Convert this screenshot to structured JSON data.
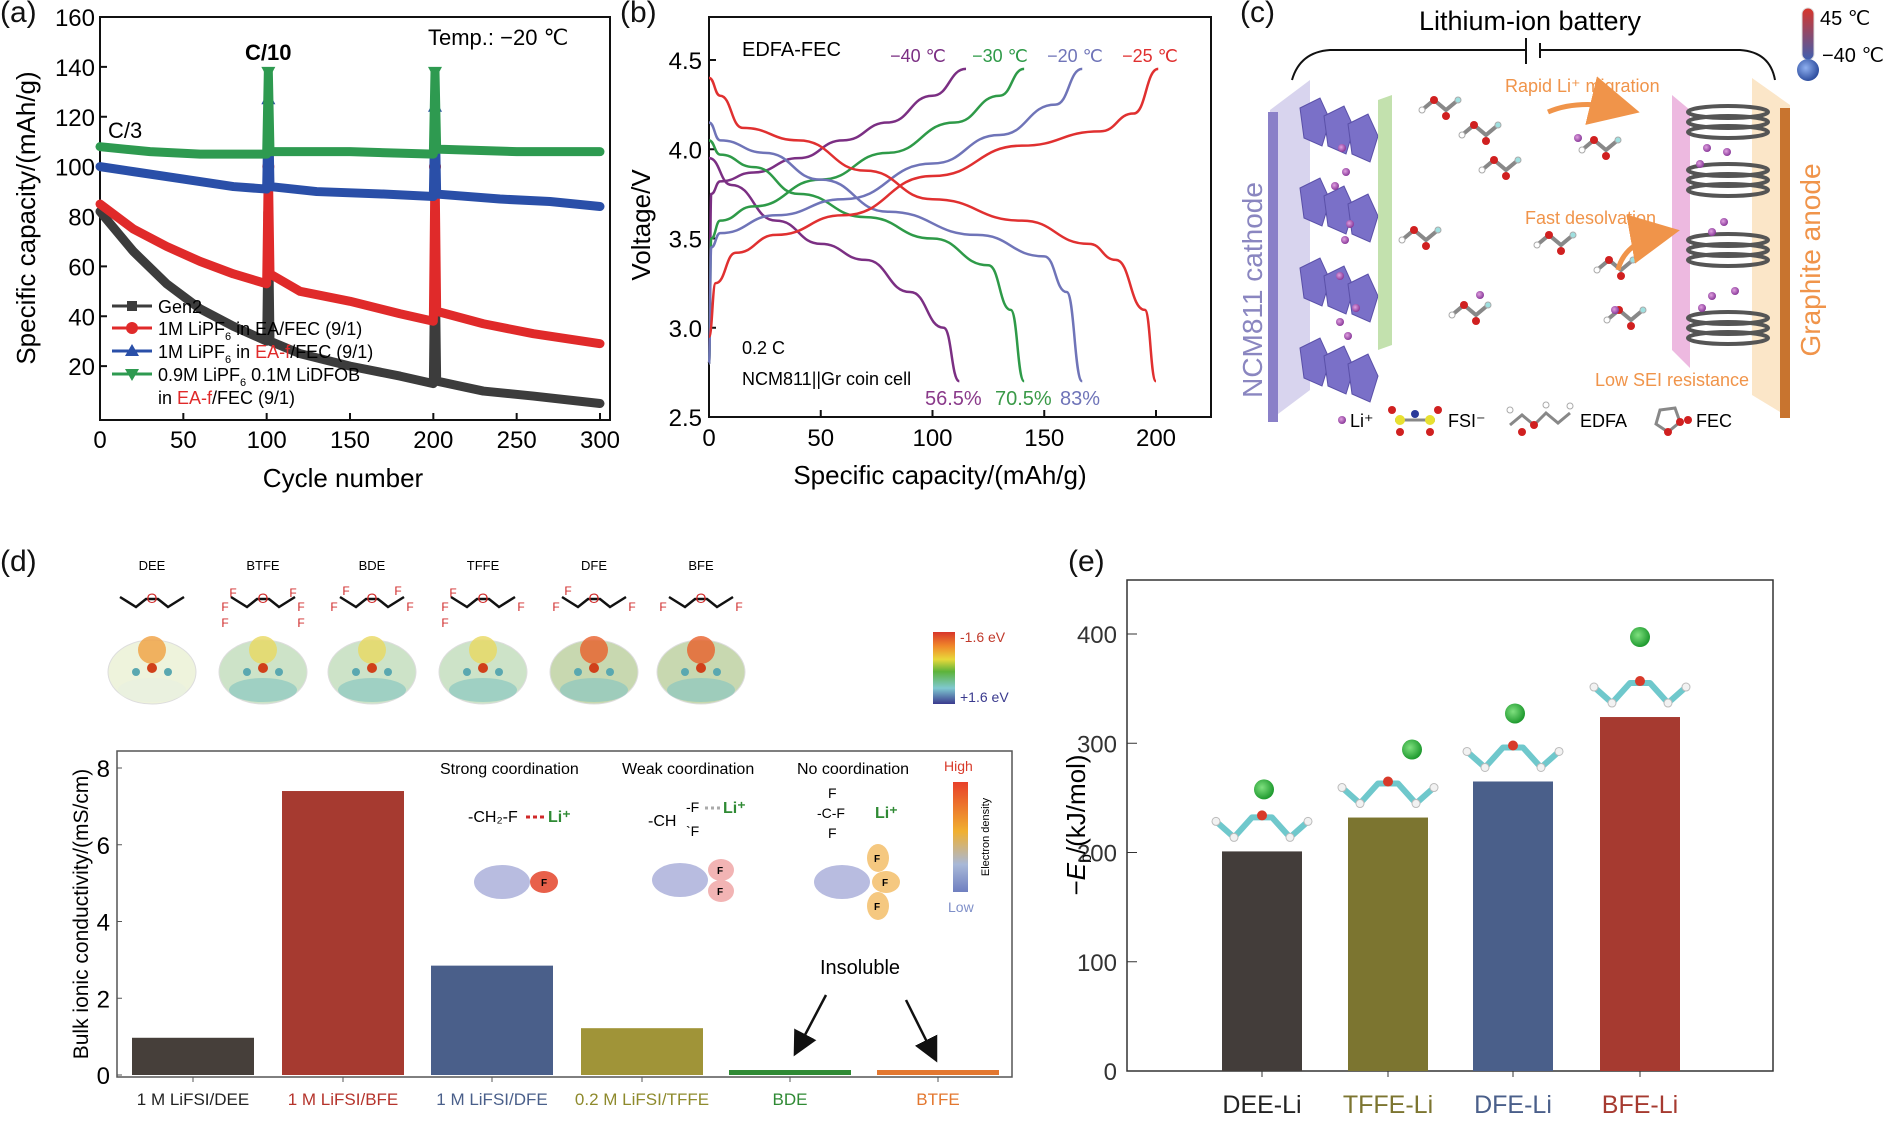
{
  "panels": {
    "a": "(a)",
    "b": "(b)",
    "c": "(c)",
    "d": "(d)",
    "e": "(e)"
  },
  "chart_data": [
    {
      "id": "a",
      "type": "line",
      "title": "",
      "xlabel": "Cycle number",
      "ylabel": "Specific capacity/(mAh/g)",
      "xlim": [
        0,
        300
      ],
      "ylim": [
        0,
        160
      ],
      "xticks": [
        0,
        50,
        100,
        150,
        200,
        250,
        300
      ],
      "yticks": [
        20,
        40,
        60,
        80,
        100,
        120,
        140,
        160
      ],
      "annotations": [
        "Temp.: −20 ℃",
        "C/10",
        "C/3"
      ],
      "legend_position": "bottom-left",
      "series": [
        {
          "name": "Gen2",
          "color": "#3c3c3c",
          "marker": "square",
          "x": [
            0,
            20,
            40,
            60,
            80,
            100,
            101,
            102,
            120,
            150,
            180,
            200,
            201,
            202,
            230,
            260,
            300
          ],
          "y": [
            82,
            66,
            53,
            43,
            36,
            30,
            80,
            30,
            25,
            20,
            16,
            13,
            66,
            14,
            10,
            8,
            5
          ]
        },
        {
          "name": "1M LiPF6 in EA/FEC (9/1)",
          "color": "#e02a2a",
          "marker": "circle",
          "x": [
            0,
            20,
            40,
            60,
            80,
            100,
            101,
            102,
            120,
            150,
            180,
            200,
            201,
            202,
            230,
            260,
            300
          ],
          "y": [
            85,
            75,
            68,
            62,
            57,
            53,
            100,
            57,
            50,
            46,
            41,
            38,
            100,
            42,
            37,
            33,
            29
          ]
        },
        {
          "name": "1M LiPF6 in EA-f/FEC (9/1)",
          "color": "#2a4fa8",
          "marker": "triangle-up",
          "x": [
            0,
            20,
            50,
            80,
            100,
            101,
            102,
            130,
            170,
            200,
            201,
            202,
            240,
            270,
            300
          ],
          "y": [
            100,
            98,
            95,
            92,
            91,
            127,
            92,
            90,
            89,
            88,
            124,
            89,
            87,
            86,
            84
          ]
        },
        {
          "name": "0.9M LiPF6 0.1M LiDFOB in EA-f/FEC (9/1)",
          "color": "#2e9a50",
          "marker": "triangle-down",
          "x": [
            0,
            30,
            60,
            100,
            101,
            102,
            150,
            200,
            201,
            202,
            250,
            300
          ],
          "y": [
            108,
            106,
            105,
            105,
            138,
            106,
            106,
            105,
            138,
            107,
            106,
            106
          ]
        }
      ]
    },
    {
      "id": "b",
      "type": "line",
      "xlabel": "Specific capacity/(mAh/g)",
      "ylabel": "Voltage/V",
      "xlim": [
        0,
        225
      ],
      "ylim": [
        2.5,
        4.75
      ],
      "xticks": [
        0,
        50,
        100,
        150,
        200
      ],
      "yticks": [
        2.5,
        3.0,
        3.5,
        4.0,
        4.5
      ],
      "annotations": [
        "EDFA-FEC",
        "0.2 C",
        "NCM811||Gr coin cell"
      ],
      "retention_labels": [
        {
          "text": "56.5%",
          "color": "#8a3a8a"
        },
        {
          "text": "70.5%",
          "color": "#3a9a48"
        },
        {
          "text": "83%",
          "color": "#6f74b8"
        }
      ],
      "series": [
        {
          "name": "−40 ℃",
          "color": "#7b2f83",
          "charge": [
            [
              0,
              2.8
            ],
            [
              1,
              3.75
            ],
            [
              5,
              3.82
            ],
            [
              20,
              3.87
            ],
            [
              40,
              3.95
            ],
            [
              60,
              4.05
            ],
            [
              80,
              4.15
            ],
            [
              100,
              4.3
            ],
            [
              115,
              4.45
            ]
          ],
          "discharge": [
            [
              0,
              3.95
            ],
            [
              10,
              3.8
            ],
            [
              30,
              3.6
            ],
            [
              50,
              3.47
            ],
            [
              70,
              3.38
            ],
            [
              90,
              3.2
            ],
            [
              105,
              3.0
            ],
            [
              112,
              2.7
            ]
          ]
        },
        {
          "name": "−30 ℃",
          "color": "#2e9a48",
          "charge": [
            [
              0,
              2.8
            ],
            [
              1,
              3.5
            ],
            [
              5,
              3.6
            ],
            [
              20,
              3.68
            ],
            [
              50,
              3.83
            ],
            [
              80,
              3.98
            ],
            [
              110,
              4.15
            ],
            [
              130,
              4.3
            ],
            [
              141,
              4.45
            ]
          ],
          "discharge": [
            [
              0,
              4.05
            ],
            [
              5,
              3.97
            ],
            [
              20,
              3.9
            ],
            [
              40,
              3.75
            ],
            [
              70,
              3.62
            ],
            [
              100,
              3.5
            ],
            [
              125,
              3.35
            ],
            [
              135,
              3.1
            ],
            [
              141,
              2.7
            ]
          ]
        },
        {
          "name": "−20 ℃",
          "color": "#6f74b8",
          "charge": [
            [
              0,
              2.8
            ],
            [
              1,
              3.45
            ],
            [
              5,
              3.53
            ],
            [
              30,
              3.63
            ],
            [
              60,
              3.72
            ],
            [
              100,
              3.92
            ],
            [
              130,
              4.08
            ],
            [
              155,
              4.25
            ],
            [
              167,
              4.45
            ]
          ],
          "discharge": [
            [
              0,
              4.15
            ],
            [
              5,
              4.05
            ],
            [
              25,
              3.98
            ],
            [
              50,
              3.83
            ],
            [
              80,
              3.65
            ],
            [
              120,
              3.52
            ],
            [
              150,
              3.4
            ],
            [
              160,
              3.2
            ],
            [
              167,
              2.7
            ]
          ]
        },
        {
          "name": "−25 ℃",
          "color": "#e03030",
          "charge": [
            [
              0,
              2.95
            ],
            [
              3,
              3.25
            ],
            [
              12,
              3.42
            ],
            [
              30,
              3.52
            ],
            [
              60,
              3.63
            ],
            [
              100,
              3.85
            ],
            [
              140,
              4.02
            ],
            [
              175,
              4.1
            ],
            [
              190,
              4.2
            ],
            [
              201,
              4.45
            ]
          ],
          "discharge": [
            [
              0,
              4.4
            ],
            [
              5,
              4.3
            ],
            [
              15,
              4.12
            ],
            [
              40,
              4.05
            ],
            [
              70,
              3.88
            ],
            [
              100,
              3.72
            ],
            [
              140,
              3.6
            ],
            [
              170,
              3.47
            ],
            [
              182,
              3.38
            ],
            [
              195,
              3.1
            ],
            [
              200,
              2.7
            ]
          ]
        }
      ]
    },
    {
      "id": "d",
      "type": "bar",
      "ylabel": "Bulk ionic conductivity/(mS/cm)",
      "ylim": [
        0,
        8.5
      ],
      "yticks": [
        0,
        2,
        4,
        6,
        8
      ],
      "categories": [
        "1 M LiFSI/DEE",
        "1 M LiFSI/BFE",
        "1 M LiFSI/DFE",
        "0.2 M LiFSI/TFFE",
        "BDE",
        "BTFE"
      ],
      "values": [
        0.97,
        7.4,
        2.85,
        1.22,
        0.13,
        0.13
      ],
      "colors": [
        "#463f3a",
        "#a63a30",
        "#4a5f8a",
        "#a09438",
        "#2f8a34",
        "#e3772f"
      ],
      "label_colors": [
        "#222222",
        "#b5332b",
        "#4a5f8a",
        "#8e8a2c",
        "#2f8a34",
        "#e3772f"
      ],
      "annotations": [
        "Insoluble"
      ]
    },
    {
      "id": "e",
      "type": "bar",
      "ylabel": "−Eb/(kJ/mol)",
      "ylim": [
        0,
        450
      ],
      "yticks": [
        0,
        100,
        200,
        300,
        400
      ],
      "categories": [
        "DEE-Li",
        "TFFE-Li",
        "DFE-Li",
        "BFE-Li"
      ],
      "values": [
        201,
        232,
        265,
        324
      ],
      "colors": [
        "#433d3a",
        "#7c7530",
        "#4a5f8a",
        "#a63a30"
      ],
      "label_colors": [
        "#222222",
        "#7c7530",
        "#4a5f8a",
        "#a63a30"
      ]
    }
  ],
  "panel_c": {
    "title": "Lithium-ion battery",
    "cathode": "NCM811 cathode",
    "anode": "Graphite anode",
    "temp_high": "45 ℃",
    "temp_low": "−40 ℃",
    "labels": [
      "Rapid Li⁺ migration",
      "Fast desolvation",
      "Low SEI resistance"
    ],
    "legend": [
      "Li⁺",
      "FSI⁻",
      "EDFA",
      "FEC"
    ]
  },
  "panel_d_top": {
    "molecules": [
      "DEE",
      "BTFE",
      "BDE",
      "TFFE",
      "DFE",
      "BFE"
    ],
    "esp_scale_top": "-1.6 eV",
    "esp_scale_bottom": "+1.6 eV",
    "coordination": [
      {
        "title": "Strong coordination",
        "formula": "-CH₂-F",
        "li": "Li⁺"
      },
      {
        "title": "Weak coordination",
        "formula": "-CH",
        "li": "Li⁺"
      },
      {
        "title": "No coordination",
        "formula": "-C-F",
        "li": "Li⁺"
      }
    ],
    "density_high": "High",
    "density_low": "Low",
    "density_label": "Electron density"
  }
}
